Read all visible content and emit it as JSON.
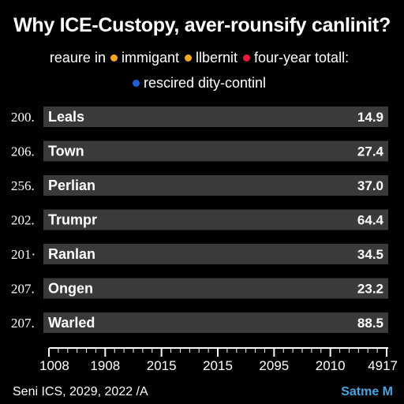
{
  "chart_data": {
    "type": "bar",
    "orientation": "horizontal",
    "title": "Why ICE-Custopy, aver-rounsify canlinit?",
    "legend": {
      "label": "reaure in",
      "items": [
        {
          "label": "immigant",
          "color": "#f5a623"
        },
        {
          "label": "llbernit",
          "color": "#f5a623"
        },
        {
          "label": "four-year totall:",
          "color": "#e8193c"
        },
        {
          "label": "rescired dity-continl",
          "color": "#1f5fd6"
        }
      ]
    },
    "row_labels": [
      "200.",
      "206.",
      "256.",
      "202.",
      "201·",
      "207.",
      "207."
    ],
    "categories": [
      "Leals",
      "Town",
      "Perlian",
      "Trumpr",
      "Ranlan",
      "Ongen",
      "Warled"
    ],
    "values": [
      14.9,
      27.4,
      37.0,
      64.4,
      34.5,
      23.2,
      88.5
    ],
    "value_labels": [
      "14.9",
      "27.4",
      "37.0",
      "64.4",
      "34.5",
      "23.2",
      "88.5"
    ],
    "x_tick_labels": [
      "1008",
      "1908",
      "2015",
      "2015",
      "2095",
      "2010",
      "4917"
    ],
    "bar_color": "#3a3a3a",
    "axis_color": "#ffffff"
  },
  "footer": {
    "source": "Seni ICS, 2029, 2022 /A",
    "brand": "Satme M"
  }
}
